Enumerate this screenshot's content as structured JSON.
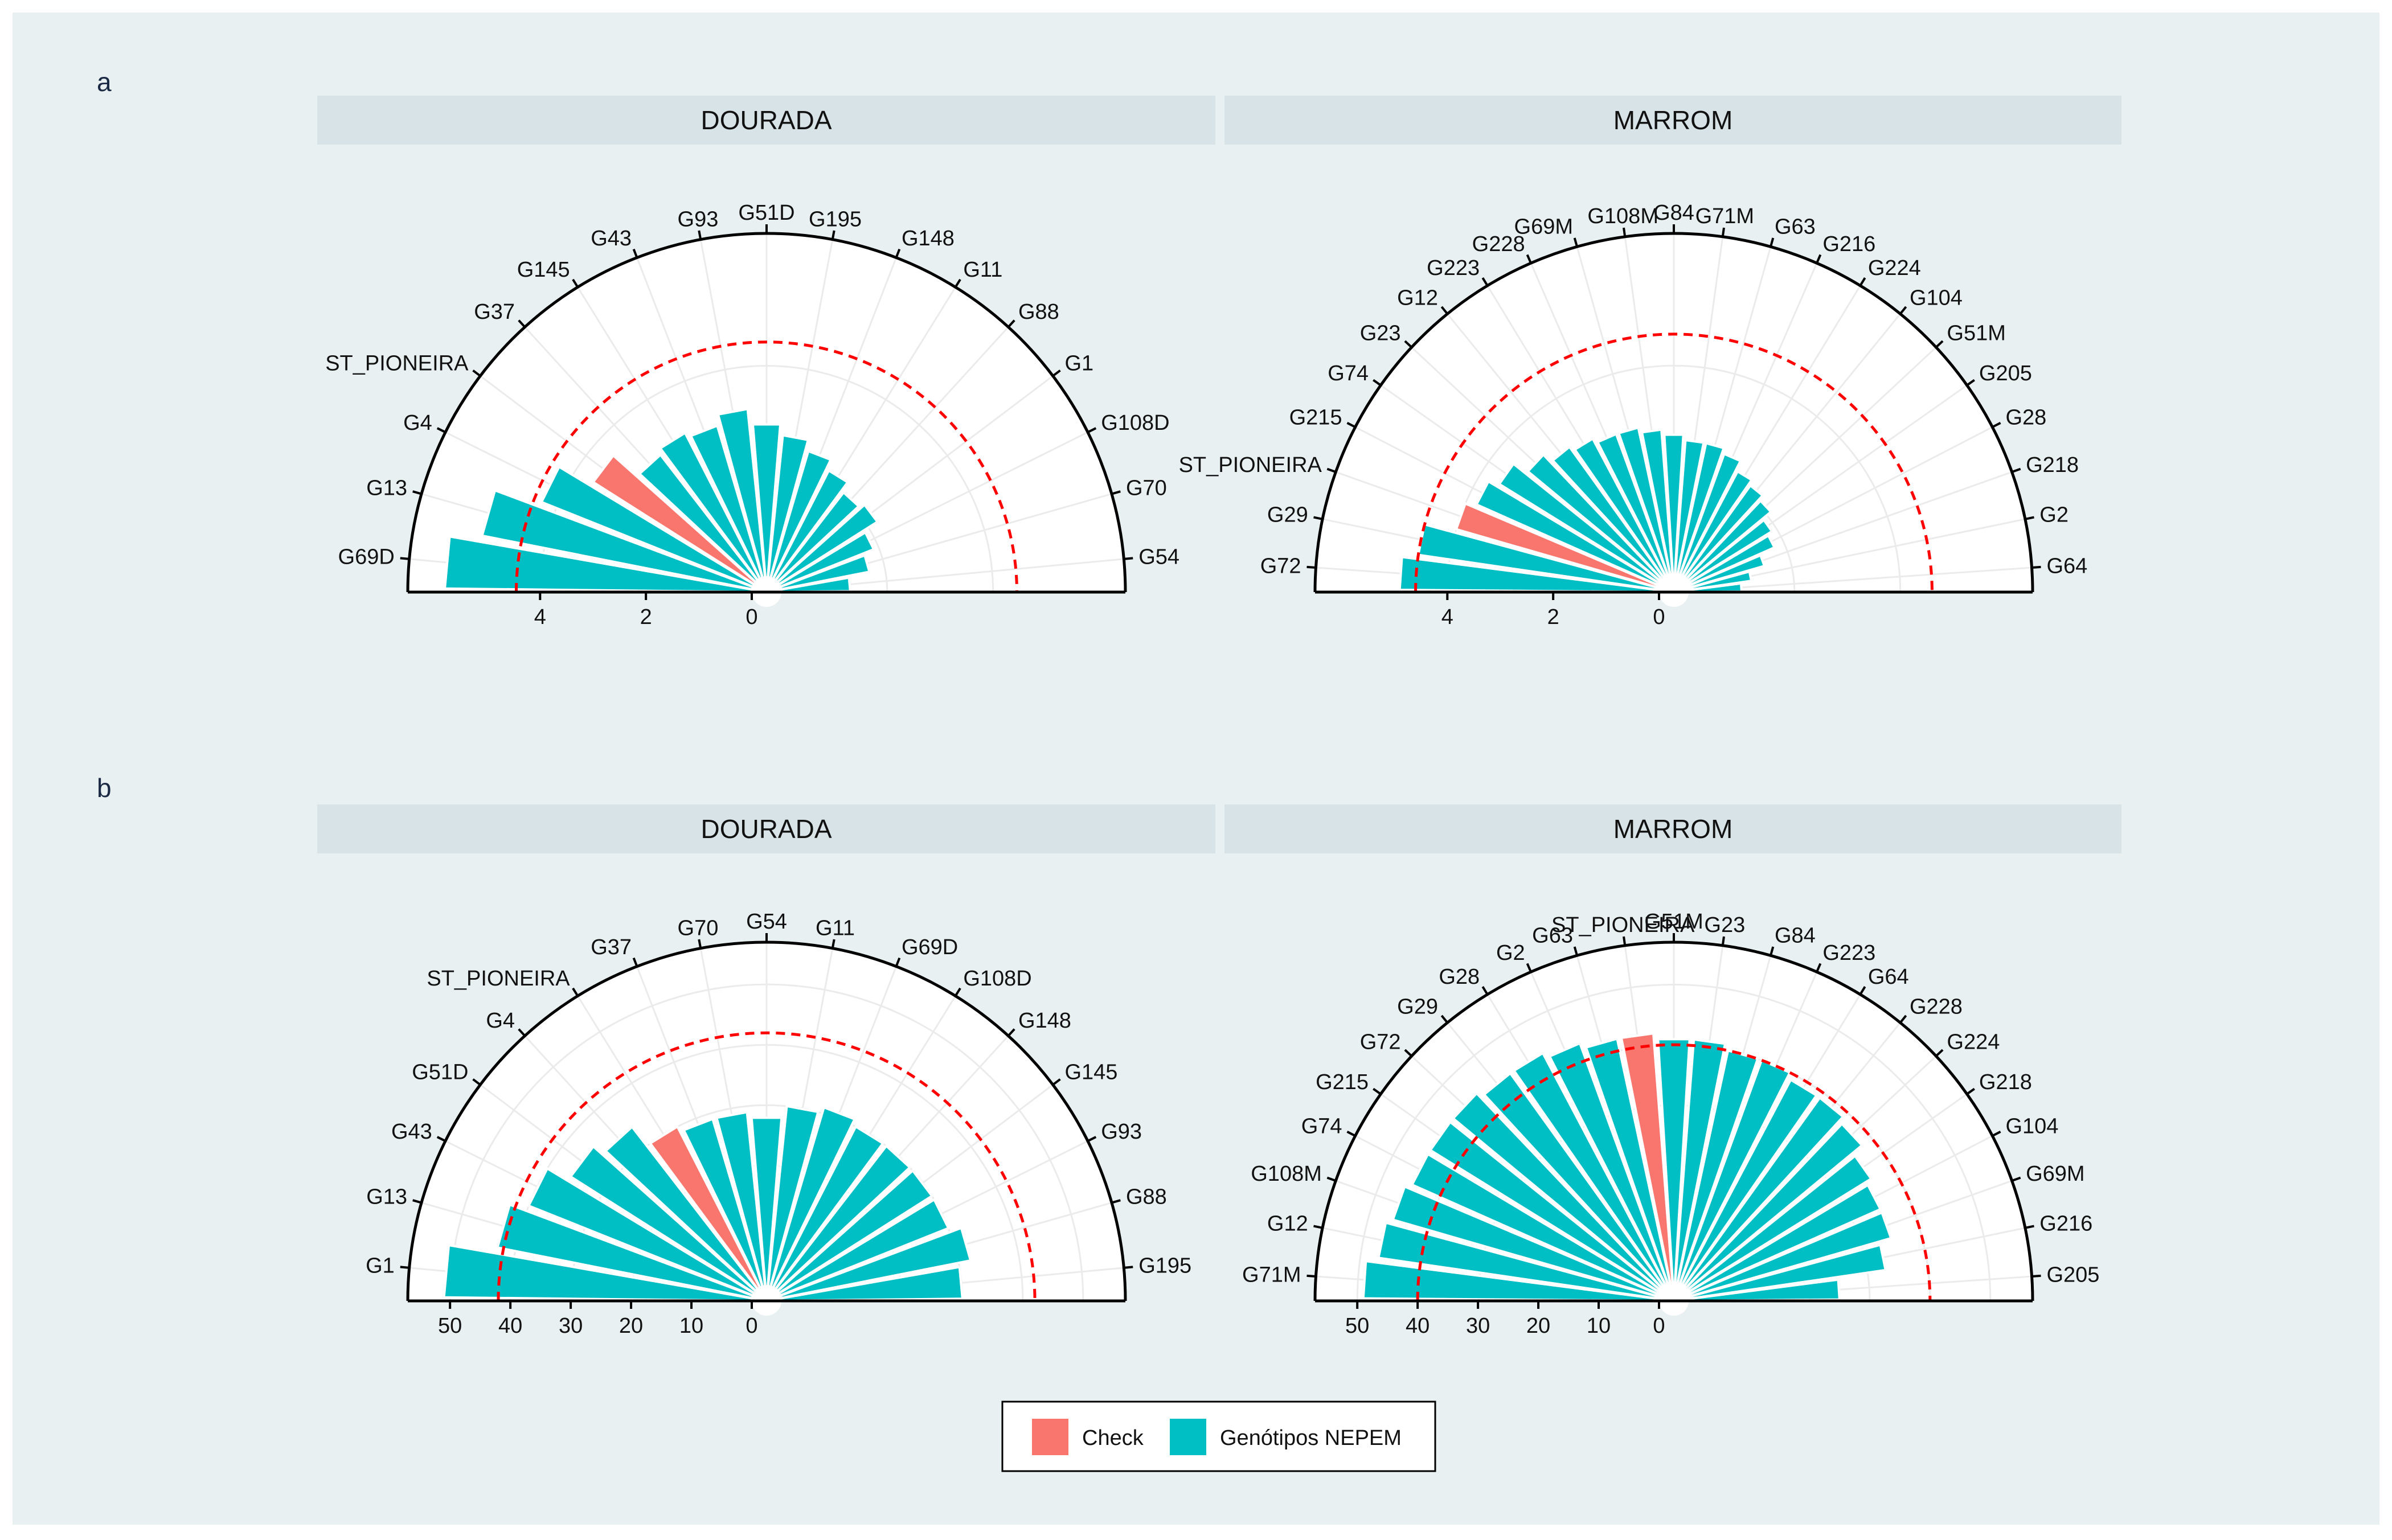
{
  "chart_data": [
    {
      "type": "bar",
      "panel_tag": "a",
      "facet": "DOURADA",
      "layout": "half-polar",
      "categories": [
        "G69D",
        "G13",
        "G4",
        "ST_PIONEIRA",
        "G37",
        "G145",
        "G43",
        "G93",
        "G51D",
        "G195",
        "G148",
        "G11",
        "G88",
        "G1",
        "G108D",
        "G70",
        "G54"
      ],
      "values": [
        5.8,
        5.2,
        4.3,
        3.6,
        3.0,
        3.1,
        3.0,
        3.2,
        2.9,
        2.7,
        2.5,
        2.3,
        2.1,
        2.2,
        1.9,
        1.7,
        1.3
      ],
      "groups": [
        "Genótipos NEPEM",
        "Genótipos NEPEM",
        "Genótipos NEPEM",
        "Check",
        "Genótipos NEPEM",
        "Genótipos NEPEM",
        "Genótipos NEPEM",
        "Genótipos NEPEM",
        "Genótipos NEPEM",
        "Genótipos NEPEM",
        "Genótipos NEPEM",
        "Genótipos NEPEM",
        "Genótipos NEPEM",
        "Genótipos NEPEM",
        "Genótipos NEPEM",
        "Genótipos NEPEM",
        "Genótipos NEPEM"
      ],
      "reference_line": 4.45,
      "rmax": 6.5,
      "ticks": [
        4,
        2,
        0
      ]
    },
    {
      "type": "bar",
      "panel_tag": "",
      "facet": "MARROM",
      "layout": "half-polar",
      "categories": [
        "G72",
        "G29",
        "ST_PIONEIRA",
        "G215",
        "G74",
        "G23",
        "G12",
        "G223",
        "G228",
        "G69M",
        "G108M",
        "G84",
        "G71M",
        "G63",
        "G216",
        "G224",
        "G104",
        "G51M",
        "G205",
        "G28",
        "G218",
        "G2",
        "G64"
      ],
      "values": [
        4.9,
        4.6,
        4.0,
        3.8,
        3.6,
        3.3,
        3.1,
        3.0,
        2.9,
        2.9,
        2.8,
        2.7,
        2.6,
        2.6,
        2.5,
        2.3,
        2.2,
        2.1,
        1.9,
        1.8,
        1.5,
        1.2,
        1.0
      ],
      "groups": [
        "Genótipos NEPEM",
        "Genótipos NEPEM",
        "Check",
        "Genótipos NEPEM",
        "Genótipos NEPEM",
        "Genótipos NEPEM",
        "Genótipos NEPEM",
        "Genótipos NEPEM",
        "Genótipos NEPEM",
        "Genótipos NEPEM",
        "Genótipos NEPEM",
        "Genótipos NEPEM",
        "Genótipos NEPEM",
        "Genótipos NEPEM",
        "Genótipos NEPEM",
        "Genótipos NEPEM",
        "Genótipos NEPEM",
        "Genótipos NEPEM",
        "Genótipos NEPEM",
        "Genótipos NEPEM",
        "Genótipos NEPEM",
        "Genótipos NEPEM",
        "Genótipos NEPEM"
      ],
      "reference_line": 4.6,
      "rmax": 6.5,
      "ticks": [
        4,
        2,
        0
      ]
    },
    {
      "type": "bar",
      "panel_tag": "b",
      "facet": "DOURADA",
      "layout": "half-polar",
      "categories": [
        "G1",
        "G13",
        "G43",
        "G51D",
        "G4",
        "ST_PIONEIRA",
        "G37",
        "G70",
        "G54",
        "G11",
        "G69D",
        "G108D",
        "G148",
        "G145",
        "G93",
        "G88",
        "G195"
      ],
      "values": [
        51,
        43,
        40,
        36,
        34,
        30,
        29,
        29,
        28,
        30,
        31,
        30,
        30,
        30,
        30,
        32,
        30
      ],
      "groups": [
        "Genótipos NEPEM",
        "Genótipos NEPEM",
        "Genótipos NEPEM",
        "Genótipos NEPEM",
        "Genótipos NEPEM",
        "Check",
        "Genótipos NEPEM",
        "Genótipos NEPEM",
        "Genótipos NEPEM",
        "Genótipos NEPEM",
        "Genótipos NEPEM",
        "Genótipos NEPEM",
        "Genótipos NEPEM",
        "Genótipos NEPEM",
        "Genótipos NEPEM",
        "Genótipos NEPEM",
        "Genótipos NEPEM"
      ],
      "reference_line": 42,
      "rmax": 57,
      "ticks": [
        50,
        40,
        30,
        20,
        10,
        0
      ]
    },
    {
      "type": "bar",
      "panel_tag": "",
      "facet": "MARROM",
      "layout": "half-polar",
      "categories": [
        "G71M",
        "G12",
        "G108M",
        "G74",
        "G215",
        "G72",
        "G29",
        "G28",
        "G2",
        "G63",
        "ST_PIONEIRA",
        "G51M",
        "G23",
        "G84",
        "G223",
        "G64",
        "G228",
        "G224",
        "G218",
        "G104",
        "G69M",
        "G216",
        "G205"
      ],
      "values": [
        49,
        47,
        46,
        45,
        45,
        45,
        44,
        44,
        43,
        42,
        42,
        41,
        41,
        40,
        40,
        39,
        39,
        38,
        36,
        35,
        35,
        33,
        25
      ],
      "groups": [
        "Genótipos NEPEM",
        "Genótipos NEPEM",
        "Genótipos NEPEM",
        "Genótipos NEPEM",
        "Genótipos NEPEM",
        "Genótipos NEPEM",
        "Genótipos NEPEM",
        "Genótipos NEPEM",
        "Genótipos NEPEM",
        "Genótipos NEPEM",
        "Check",
        "Genótipos NEPEM",
        "Genótipos NEPEM",
        "Genótipos NEPEM",
        "Genótipos NEPEM",
        "Genótipos NEPEM",
        "Genótipos NEPEM",
        "Genótipos NEPEM",
        "Genótipos NEPEM",
        "Genótipos NEPEM",
        "Genótipos NEPEM",
        "Genótipos NEPEM",
        "Genótipos NEPEM"
      ],
      "reference_line": 40,
      "rmax": 57,
      "ticks": [
        50,
        40,
        30,
        20,
        10,
        0
      ]
    }
  ],
  "legend": {
    "position": "bottom",
    "items": [
      {
        "label": "Check",
        "color": "#F8766D"
      },
      {
        "label": "Genótipos NEPEM",
        "color": "#00BFC4"
      }
    ]
  },
  "colors": {
    "background": "#E8F0F2",
    "strip": "#D8E3E7",
    "check": "#F8766D",
    "nepem": "#00BFC4",
    "reference_line": "#FF0000"
  }
}
